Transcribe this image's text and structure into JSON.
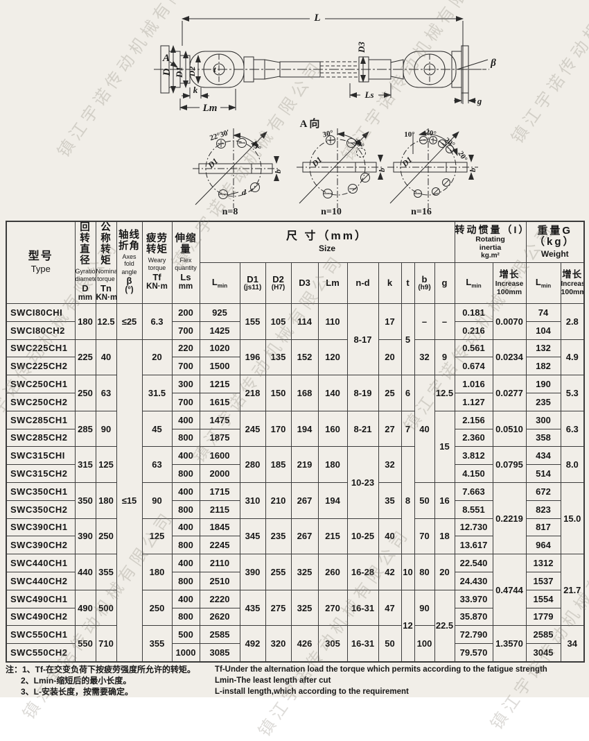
{
  "watermark": {
    "text": "镇江宇诺传动机械有限公司"
  },
  "drawing": {
    "dims": {
      "L": "L",
      "A": "A",
      "D": "D",
      "D1": "D1",
      "D2": "D2",
      "t": "t",
      "k": "k",
      "Lm": "Lm",
      "D3": "D3",
      "Ls": "Ls",
      "beta": "β",
      "g": "g"
    },
    "view_section_label": "A 向",
    "views": [
      {
        "label": "n=8",
        "angle1": "22°30′",
        "angle2": "45°",
        "d1": "D1",
        "b": "b",
        "d": "d"
      },
      {
        "label": "n=10",
        "angle1": "30°",
        "angle2": "30°",
        "d1": "D1",
        "b": "b"
      },
      {
        "label": "n=16",
        "angle1": "10°",
        "angle2": "20°",
        "angle3": "20°",
        "angle4": "20°",
        "d1": "D1",
        "b": "b"
      }
    ]
  },
  "table": {
    "header": {
      "type": {
        "zh": "型号",
        "en": "Type"
      },
      "cols": [
        {
          "zh1": "回转",
          "zh2": "直径",
          "en1": "Gyration",
          "en2": "diameter",
          "sym": "D",
          "unit": "mm"
        },
        {
          "zh1": "公称",
          "zh2": "转矩",
          "en1": "Nominal",
          "en2": "torque",
          "sym": "Tn",
          "unit": "KN·m"
        },
        {
          "zh1": "轴线",
          "zh2": "折角",
          "en1": "Axes fold",
          "en2": "angle",
          "sym": "β",
          "unit": "(°)"
        },
        {
          "zh1": "疲劳",
          "zh2": "转矩",
          "en1": "Weary",
          "en2": "torque",
          "sym": "Tf",
          "unit": "KN·m"
        },
        {
          "zh1": "伸缩量",
          "zh2": "",
          "en1": "Flex",
          "en2": "quantity",
          "sym": "Ls",
          "unit": "mm"
        }
      ],
      "size_group": {
        "zh": "尺 寸（mm）",
        "en": "Size"
      },
      "size_cols": [
        {
          "l1": "D1",
          "l2": "(js11)"
        },
        {
          "l1": "D2",
          "l2": "(H7)"
        },
        {
          "l1": "D3",
          "l2": ""
        },
        {
          "l1": "Lm",
          "l2": ""
        },
        {
          "l1": "n-d",
          "l2": ""
        },
        {
          "l1": "k",
          "l2": ""
        },
        {
          "l1": "t",
          "l2": ""
        },
        {
          "l1": "b",
          "l2": "(h9)"
        },
        {
          "l1": "g",
          "l2": ""
        }
      ],
      "inertia_group": {
        "zh": "转动惯量（I）",
        "en1": "Rotating",
        "en2": "inertia",
        "unit": "kg.m²"
      },
      "weight_group": {
        "zh": "重量G（kg）",
        "en": "Weight"
      },
      "lmin": {
        "base": "L",
        "sub": "min"
      },
      "increase": {
        "zh": "增长",
        "en": "Increase",
        "unit": "100mm"
      }
    },
    "rows": [
      {
        "cells": [
          {
            "v": "SWCI80CHI",
            "type": true
          },
          {
            "v": "180",
            "rs": 2
          },
          {
            "v": "12.5",
            "rs": 2
          },
          {
            "v": "≤25",
            "rs": 2
          },
          {
            "v": "6.3",
            "rs": 2
          },
          {
            "v": "200"
          },
          {
            "v": "925"
          },
          {
            "v": "155",
            "rs": 2
          },
          {
            "v": "105",
            "rs": 2
          },
          {
            "v": "114",
            "rs": 2
          },
          {
            "v": "110",
            "rs": 2
          },
          {
            "v": "8-17",
            "rs": 4
          },
          {
            "v": "17",
            "rs": 2
          },
          {
            "v": "5",
            "rs": 4
          },
          {
            "v": "–",
            "rs": 2
          },
          {
            "v": "–",
            "rs": 2
          },
          {
            "v": "0.181"
          },
          {
            "v": "0.0070",
            "rs": 2
          },
          {
            "v": "74"
          },
          {
            "v": "2.8",
            "rs": 2
          }
        ]
      },
      {
        "cells": [
          {
            "v": "SWCI80CH2",
            "type": true
          },
          {
            "v": "700"
          },
          {
            "v": "1425"
          },
          {
            "v": "0.216"
          },
          {
            "v": "104"
          }
        ]
      },
      {
        "cells": [
          {
            "v": "SWC225CH1",
            "type": true
          },
          {
            "v": "225",
            "rs": 2
          },
          {
            "v": "40",
            "rs": 2
          },
          {
            "v": "≤15",
            "rs": 18
          },
          {
            "v": "20",
            "rs": 2
          },
          {
            "v": "220"
          },
          {
            "v": "1020"
          },
          {
            "v": "196",
            "rs": 2
          },
          {
            "v": "135",
            "rs": 2
          },
          {
            "v": "152",
            "rs": 2
          },
          {
            "v": "120",
            "rs": 2
          },
          {
            "v": "20",
            "rs": 2
          },
          {
            "v": "32",
            "rs": 2
          },
          {
            "v": "9",
            "rs": 2
          },
          {
            "v": "0.561"
          },
          {
            "v": "0.0234",
            "rs": 2
          },
          {
            "v": "132"
          },
          {
            "v": "4.9",
            "rs": 2
          }
        ]
      },
      {
        "cells": [
          {
            "v": "SWC225CH2",
            "type": true
          },
          {
            "v": "700"
          },
          {
            "v": "1500"
          },
          {
            "v": "0.674"
          },
          {
            "v": "182"
          }
        ]
      },
      {
        "cells": [
          {
            "v": "SWC250CH1",
            "type": true
          },
          {
            "v": "250",
            "rs": 2
          },
          {
            "v": "63",
            "rs": 2
          },
          {
            "v": "31.5",
            "rs": 2
          },
          {
            "v": "300"
          },
          {
            "v": "1215"
          },
          {
            "v": "218",
            "rs": 2
          },
          {
            "v": "150",
            "rs": 2
          },
          {
            "v": "168",
            "rs": 2
          },
          {
            "v": "140",
            "rs": 2
          },
          {
            "v": "8-19",
            "rs": 2
          },
          {
            "v": "25",
            "rs": 2
          },
          {
            "v": "6",
            "rs": 2
          },
          {
            "v": "40",
            "rs": 6
          },
          {
            "v": "12.5",
            "rs": 2
          },
          {
            "v": "1.016"
          },
          {
            "v": "0.0277",
            "rs": 2
          },
          {
            "v": "190"
          },
          {
            "v": "5.3",
            "rs": 2
          }
        ]
      },
      {
        "cells": [
          {
            "v": "SWC250CH2",
            "type": true
          },
          {
            "v": "700"
          },
          {
            "v": "1615"
          },
          {
            "v": "1.127"
          },
          {
            "v": "235"
          }
        ]
      },
      {
        "cells": [
          {
            "v": "SWC285CH1",
            "type": true
          },
          {
            "v": "285",
            "rs": 2
          },
          {
            "v": "90",
            "rs": 2
          },
          {
            "v": "45",
            "rs": 2
          },
          {
            "v": "400"
          },
          {
            "v": "1475"
          },
          {
            "v": "245",
            "rs": 2
          },
          {
            "v": "170",
            "rs": 2
          },
          {
            "v": "194",
            "rs": 2
          },
          {
            "v": "160",
            "rs": 2
          },
          {
            "v": "8-21",
            "rs": 2
          },
          {
            "v": "27",
            "rs": 2
          },
          {
            "v": "7",
            "rs": 2
          },
          {
            "v": "15",
            "rs": 4
          },
          {
            "v": "2.156"
          },
          {
            "v": "0.0510",
            "rs": 2
          },
          {
            "v": "300"
          },
          {
            "v": "6.3",
            "rs": 2
          }
        ]
      },
      {
        "cells": [
          {
            "v": "SWC285CH2",
            "type": true
          },
          {
            "v": "800"
          },
          {
            "v": "1875"
          },
          {
            "v": "2.360"
          },
          {
            "v": "358"
          }
        ]
      },
      {
        "cells": [
          {
            "v": "SWC315CHI",
            "type": true
          },
          {
            "v": "315",
            "rs": 2
          },
          {
            "v": "125",
            "rs": 2
          },
          {
            "v": "63",
            "rs": 2
          },
          {
            "v": "400"
          },
          {
            "v": "1600"
          },
          {
            "v": "280",
            "rs": 2
          },
          {
            "v": "185",
            "rs": 2
          },
          {
            "v": "219",
            "rs": 2
          },
          {
            "v": "180",
            "rs": 2
          },
          {
            "v": "10-23",
            "rs": 4
          },
          {
            "v": "32",
            "rs": 2
          },
          {
            "v": "8",
            "rs": 6
          },
          {
            "v": "3.812"
          },
          {
            "v": "0.0795",
            "rs": 2
          },
          {
            "v": "434"
          },
          {
            "v": "8.0",
            "rs": 2
          }
        ]
      },
      {
        "cells": [
          {
            "v": "SWC315CH2",
            "type": true
          },
          {
            "v": "800"
          },
          {
            "v": "2000"
          },
          {
            "v": "4.150"
          },
          {
            "v": "514"
          }
        ]
      },
      {
        "cells": [
          {
            "v": "SWC350CH1",
            "type": true
          },
          {
            "v": "350",
            "rs": 2
          },
          {
            "v": "180",
            "rs": 2
          },
          {
            "v": "90",
            "rs": 2
          },
          {
            "v": "400"
          },
          {
            "v": "1715"
          },
          {
            "v": "310",
            "rs": 2
          },
          {
            "v": "210",
            "rs": 2
          },
          {
            "v": "267",
            "rs": 2
          },
          {
            "v": "194",
            "rs": 2
          },
          {
            "v": "35",
            "rs": 2
          },
          {
            "v": "50",
            "rs": 2
          },
          {
            "v": "16",
            "rs": 2
          },
          {
            "v": "7.663"
          },
          {
            "v": "0.2219",
            "rs": 4
          },
          {
            "v": "672"
          },
          {
            "v": "15.0",
            "rs": 4
          }
        ]
      },
      {
        "cells": [
          {
            "v": "SWC350CH2",
            "type": true
          },
          {
            "v": "800"
          },
          {
            "v": "2115"
          },
          {
            "v": "8.551"
          },
          {
            "v": "823"
          }
        ]
      },
      {
        "cells": [
          {
            "v": "SWC390CH1",
            "type": true
          },
          {
            "v": "390",
            "rs": 2
          },
          {
            "v": "250",
            "rs": 2
          },
          {
            "v": "125",
            "rs": 2
          },
          {
            "v": "400"
          },
          {
            "v": "1845"
          },
          {
            "v": "345",
            "rs": 2
          },
          {
            "v": "235",
            "rs": 2
          },
          {
            "v": "267",
            "rs": 2
          },
          {
            "v": "215",
            "rs": 2
          },
          {
            "v": "10-25",
            "rs": 2
          },
          {
            "v": "40",
            "rs": 2
          },
          {
            "v": "70",
            "rs": 2
          },
          {
            "v": "18",
            "rs": 2
          },
          {
            "v": "12.730"
          },
          {
            "v": "817"
          }
        ]
      },
      {
        "cells": [
          {
            "v": "SWC390CH2",
            "type": true
          },
          {
            "v": "800"
          },
          {
            "v": "2245"
          },
          {
            "v": "13.617"
          },
          {
            "v": "964"
          }
        ]
      },
      {
        "cells": [
          {
            "v": "SWC440CH1",
            "type": true
          },
          {
            "v": "440",
            "rs": 2
          },
          {
            "v": "355",
            "rs": 2
          },
          {
            "v": "180",
            "rs": 2
          },
          {
            "v": "400"
          },
          {
            "v": "2110"
          },
          {
            "v": "390",
            "rs": 2
          },
          {
            "v": "255",
            "rs": 2
          },
          {
            "v": "325",
            "rs": 2
          },
          {
            "v": "260",
            "rs": 2
          },
          {
            "v": "16-28",
            "rs": 2
          },
          {
            "v": "42",
            "rs": 2
          },
          {
            "v": "10",
            "rs": 2
          },
          {
            "v": "80",
            "rs": 2
          },
          {
            "v": "20",
            "rs": 2
          },
          {
            "v": "22.540"
          },
          {
            "v": "0.4744",
            "rs": 4
          },
          {
            "v": "1312"
          },
          {
            "v": "21.7",
            "rs": 4
          }
        ]
      },
      {
        "cells": [
          {
            "v": "SWC440CH2",
            "type": true
          },
          {
            "v": "800"
          },
          {
            "v": "2510"
          },
          {
            "v": "24.430"
          },
          {
            "v": "1537"
          }
        ]
      },
      {
        "cells": [
          {
            "v": "SWC490CH1",
            "type": true
          },
          {
            "v": "490",
            "rs": 2
          },
          {
            "v": "500",
            "rs": 2
          },
          {
            "v": "250",
            "rs": 2
          },
          {
            "v": "400"
          },
          {
            "v": "2220"
          },
          {
            "v": "435",
            "rs": 2
          },
          {
            "v": "275",
            "rs": 2
          },
          {
            "v": "325",
            "rs": 2
          },
          {
            "v": "270",
            "rs": 2
          },
          {
            "v": "16-31",
            "rs": 2
          },
          {
            "v": "47",
            "rs": 2
          },
          {
            "v": "12",
            "rs": 4
          },
          {
            "v": "90",
            "rs": 2
          },
          {
            "v": "22.5",
            "rs": 4
          },
          {
            "v": "33.970"
          },
          {
            "v": "1554"
          }
        ]
      },
      {
        "cells": [
          {
            "v": "SWC490CH2",
            "type": true
          },
          {
            "v": "800"
          },
          {
            "v": "2620"
          },
          {
            "v": "35.870"
          },
          {
            "v": "1779"
          }
        ]
      },
      {
        "cells": [
          {
            "v": "SWC550CH1",
            "type": true
          },
          {
            "v": "550",
            "rs": 2
          },
          {
            "v": "710",
            "rs": 2
          },
          {
            "v": "355",
            "rs": 2
          },
          {
            "v": "500"
          },
          {
            "v": "2585"
          },
          {
            "v": "492",
            "rs": 2
          },
          {
            "v": "320",
            "rs": 2
          },
          {
            "v": "426",
            "rs": 2
          },
          {
            "v": "305",
            "rs": 2
          },
          {
            "v": "16-31",
            "rs": 2
          },
          {
            "v": "50",
            "rs": 2
          },
          {
            "v": "100",
            "rs": 2
          },
          {
            "v": "72.790"
          },
          {
            "v": "1.3570",
            "rs": 2
          },
          {
            "v": "2585"
          },
          {
            "v": "34",
            "rs": 2
          }
        ]
      },
      {
        "cells": [
          {
            "v": "SWC550CH2",
            "type": true
          },
          {
            "v": "1000"
          },
          {
            "v": "3085"
          },
          {
            "v": "79.570"
          },
          {
            "v": "3045"
          }
        ]
      }
    ]
  },
  "notes": {
    "zh": [
      "注：1、Tf-在交变负荷下按疲劳强度所允许的转矩。",
      "2、Lmin-缩短后的最小长度。",
      "3、L-安装长度，按需要确定。"
    ],
    "en": [
      "Tf-Under the alternation load the torque which permits according to the fatigue strength",
      "Lmin-The least length after cut",
      "L-install length,which according to the requirement"
    ]
  }
}
